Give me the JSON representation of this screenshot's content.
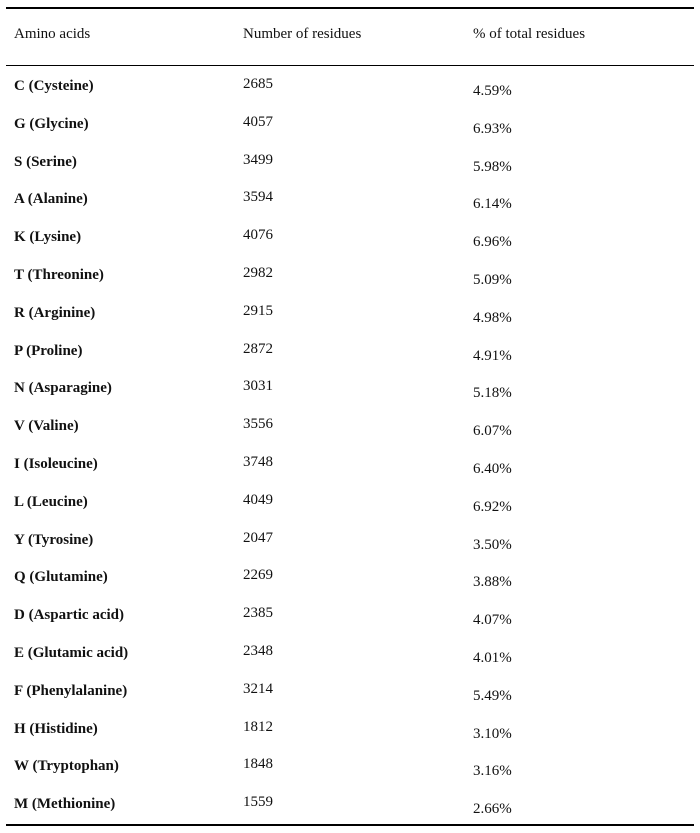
{
  "table": {
    "headers": {
      "amino": "Amino acids",
      "count": "Number of residues",
      "percent": "% of total residues"
    },
    "rows": [
      {
        "name": "C (Cysteine)",
        "count": "2685",
        "percent": "4.59%"
      },
      {
        "name": "G (Glycine)",
        "count": "4057",
        "percent": "6.93%"
      },
      {
        "name": "S (Serine)",
        "count": "3499",
        "percent": "5.98%"
      },
      {
        "name": "A (Alanine)",
        "count": "3594",
        "percent": "6.14%"
      },
      {
        "name": "K (Lysine)",
        "count": "4076",
        "percent": "6.96%"
      },
      {
        "name": "T (Threonine)",
        "count": "2982",
        "percent": "5.09%"
      },
      {
        "name": "R (Arginine)",
        "count": "2915",
        "percent": "4.98%"
      },
      {
        "name": "P (Proline)",
        "count": "2872",
        "percent": "4.91%"
      },
      {
        "name": "N (Asparagine)",
        "count": "3031",
        "percent": "5.18%"
      },
      {
        "name": "V (Valine)",
        "count": "3556",
        "percent": "6.07%"
      },
      {
        "name": "I (Isoleucine)",
        "count": "3748",
        "percent": "6.40%"
      },
      {
        "name": "L (Leucine)",
        "count": "4049",
        "percent": "6.92%"
      },
      {
        "name": "Y (Tyrosine)",
        "count": "2047",
        "percent": "3.50%"
      },
      {
        "name": "Q (Glutamine)",
        "count": "2269",
        "percent": "3.88%"
      },
      {
        "name": "D (Aspartic acid)",
        "count": "2385",
        "percent": "4.07%"
      },
      {
        "name": "E (Glutamic acid)",
        "count": "2348",
        "percent": "4.01%"
      },
      {
        "name": "F (Phenylalanine)",
        "count": "3214",
        "percent": "5.49%"
      },
      {
        "name": "H (Histidine)",
        "count": "1812",
        "percent": "3.10%"
      },
      {
        "name": "W (Tryptophan)",
        "count": "1848",
        "percent": "3.16%"
      },
      {
        "name": "M (Methionine)",
        "count": "1559",
        "percent": "2.66%"
      }
    ]
  }
}
